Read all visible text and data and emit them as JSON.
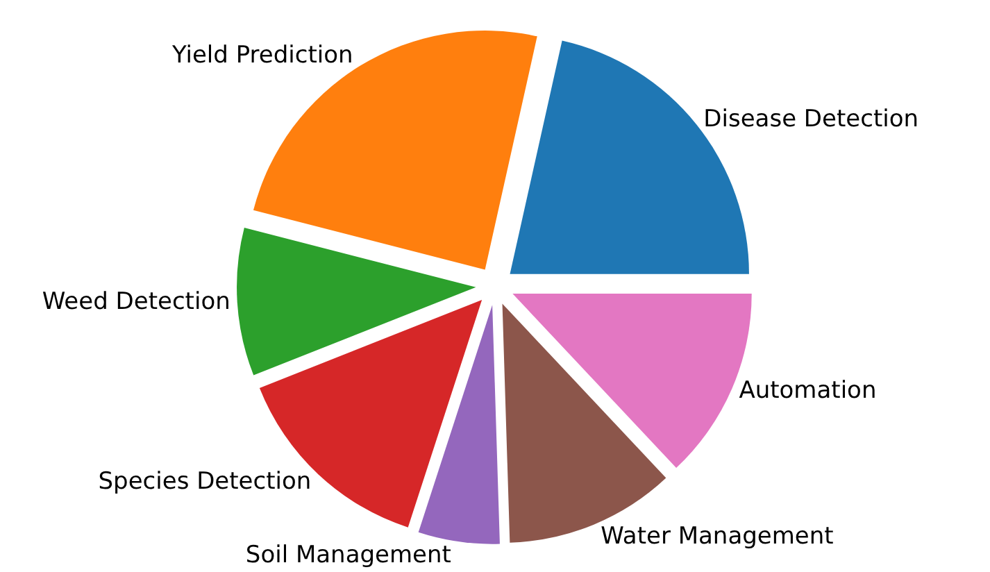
{
  "chart_data": {
    "type": "pie",
    "categories": [
      "Disease Detection",
      "Yield Prediction",
      "Weed Detection",
      "Species Detection",
      "Soil Management",
      "Water Management",
      "Automation"
    ],
    "values": [
      21.5,
      24.5,
      10,
      14,
      5.5,
      11.5,
      13
    ],
    "colors": [
      "#1f77b4",
      "#ff7f0e",
      "#2ca02c",
      "#d62728",
      "#9467bd",
      "#8c564b",
      "#e377c2"
    ],
    "legend": false
  }
}
